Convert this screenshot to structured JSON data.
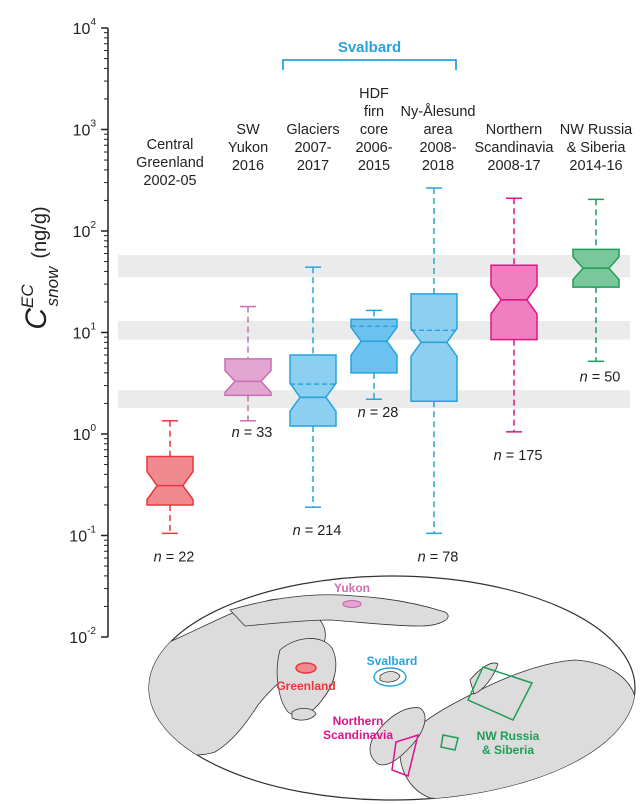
{
  "chart_data": {
    "type": "box",
    "title": "",
    "yscale": "log",
    "ylim": [
      0.01,
      10000
    ],
    "ylabel": {
      "main": "C",
      "sup": "EC",
      "sub": "snow",
      "unit": "(ng/g)"
    },
    "ticks": [
      {
        "value": 0.01,
        "base": "10",
        "exp": "-2"
      },
      {
        "value": 0.1,
        "base": "10",
        "exp": "-1"
      },
      {
        "value": 1,
        "base": "10",
        "exp": "0"
      },
      {
        "value": 10,
        "base": "10",
        "exp": "1"
      },
      {
        "value": 100,
        "base": "10",
        "exp": "2"
      },
      {
        "value": 1000,
        "base": "10",
        "exp": "3"
      },
      {
        "value": 10000,
        "base": "10",
        "exp": "4"
      }
    ],
    "shaded_bands": [
      [
        1.8,
        2.7
      ],
      [
        8.5,
        13
      ],
      [
        35,
        58
      ]
    ],
    "group_label": "Svalbard",
    "group_members": [
      "glaciers",
      "hdf",
      "nyalesund"
    ],
    "series": [
      {
        "id": "central-greenland",
        "label_lines": [
          "Central",
          "Greenland",
          "2002-05"
        ],
        "color": "#e8373f",
        "fill": "#f08a8f",
        "whisker_low": 0.105,
        "q1": 0.2,
        "median": 0.31,
        "q3": 0.6,
        "whisker_high": 1.35,
        "mean": null,
        "n_prefix": "n",
        "n_text": "= 22"
      },
      {
        "id": "sw-yukon",
        "label_lines": [
          "SW",
          "Yukon",
          "2016"
        ],
        "color": "#c76fb0",
        "fill": "#e3a6d3",
        "whisker_low": 1.35,
        "q1": 2.4,
        "median": 3.3,
        "q3": 5.5,
        "whisker_high": 18,
        "mean": null,
        "n_prefix": "n",
        "n_text": "= 33"
      },
      {
        "id": "glaciers",
        "label_lines": [
          "Glaciers",
          "2007-",
          "2017"
        ],
        "color": "#27a3dd",
        "fill": "#8ccff0",
        "whisker_low": 0.19,
        "q1": 1.2,
        "median": 2.3,
        "q3": 6,
        "whisker_high": 44,
        "mean": 3.1,
        "n_prefix": "n",
        "n_text": "= 214"
      },
      {
        "id": "hdf",
        "label_lines": [
          "HDF",
          "firn",
          "core",
          "2006-",
          "2015"
        ],
        "color": "#27a3dd",
        "fill": "#6cc2ee",
        "whisker_low": 2.2,
        "q1": 4,
        "median": 8.2,
        "q3": 13.5,
        "whisker_high": 16.5,
        "mean": 11.5,
        "n_prefix": "n",
        "n_text": "= 28"
      },
      {
        "id": "nyalesund",
        "label_lines": [
          "Ny-Ålesund",
          "area",
          "2008-",
          "2018"
        ],
        "color": "#27a3dd",
        "fill": "#8ccff0",
        "whisker_low": 0.105,
        "q1": 2.1,
        "median": 8,
        "q3": 24,
        "whisker_high": 265,
        "mean": 10.5,
        "n_prefix": "n",
        "n_text": "= 78"
      },
      {
        "id": "northern-scandinavia",
        "label_lines": [
          "Northern",
          "Scandinavia",
          "2008-17"
        ],
        "color": "#e0138c",
        "fill": "#f07fbf",
        "whisker_low": 1.05,
        "q1": 8.5,
        "median": 21,
        "q3": 46,
        "whisker_high": 210,
        "mean": null,
        "n_prefix": "n",
        "n_text": "= 175"
      },
      {
        "id": "nw-russia",
        "label_lines": [
          "NW Russia",
          "& Siberia",
          "2014-16"
        ],
        "color": "#1f9e57",
        "fill": "#79c79a",
        "whisker_low": 5.2,
        "q1": 28,
        "median": 43,
        "q3": 66,
        "whisker_high": 205,
        "mean": null,
        "n_prefix": "n",
        "n_text": "= 50"
      }
    ]
  },
  "map": {
    "labels": [
      {
        "id": "yukon",
        "text": "Yukon",
        "color": "#c76fb0"
      },
      {
        "id": "greenland",
        "text": "Greenland",
        "color": "#e8373f"
      },
      {
        "id": "svalbard",
        "text": "Svalbard",
        "color": "#27a3dd"
      },
      {
        "id": "northern-scandinavia",
        "text_lines": [
          "Northern",
          "Scandinavia"
        ],
        "color": "#e0138c"
      },
      {
        "id": "nw-russia",
        "text_lines": [
          "NW Russia",
          "& Siberia"
        ],
        "color": "#1f9e57"
      }
    ]
  }
}
